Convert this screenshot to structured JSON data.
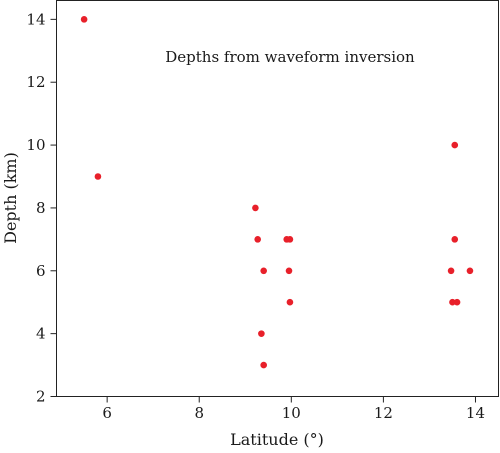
{
  "chart_data": {
    "type": "scatter",
    "title": "",
    "annotation": "Depths from waveform inversion",
    "xlabel": "Latitude (°)",
    "ylabel": "Depth (km)",
    "xlim": [
      4.9,
      14.5
    ],
    "ylim": [
      2,
      14.6
    ],
    "xticks": [
      "6",
      "8",
      "10",
      "12",
      "14"
    ],
    "yticks": [
      "2",
      "4",
      "6",
      "8",
      "10",
      "12",
      "14"
    ],
    "grid": false,
    "color": "#e8202a",
    "points": [
      {
        "x": 5.5,
        "y": 14.0
      },
      {
        "x": 5.8,
        "y": 9.0
      },
      {
        "x": 9.22,
        "y": 8.0
      },
      {
        "x": 9.27,
        "y": 7.0
      },
      {
        "x": 9.4,
        "y": 6.0
      },
      {
        "x": 9.35,
        "y": 4.0
      },
      {
        "x": 9.4,
        "y": 3.0
      },
      {
        "x": 9.9,
        "y": 7.0
      },
      {
        "x": 9.97,
        "y": 7.0
      },
      {
        "x": 9.95,
        "y": 6.0
      },
      {
        "x": 9.97,
        "y": 5.0
      },
      {
        "x": 13.55,
        "y": 10.0
      },
      {
        "x": 13.55,
        "y": 7.0
      },
      {
        "x": 13.47,
        "y": 6.0
      },
      {
        "x": 13.88,
        "y": 6.0
      },
      {
        "x": 13.5,
        "y": 5.0
      },
      {
        "x": 13.6,
        "y": 5.0
      }
    ]
  }
}
